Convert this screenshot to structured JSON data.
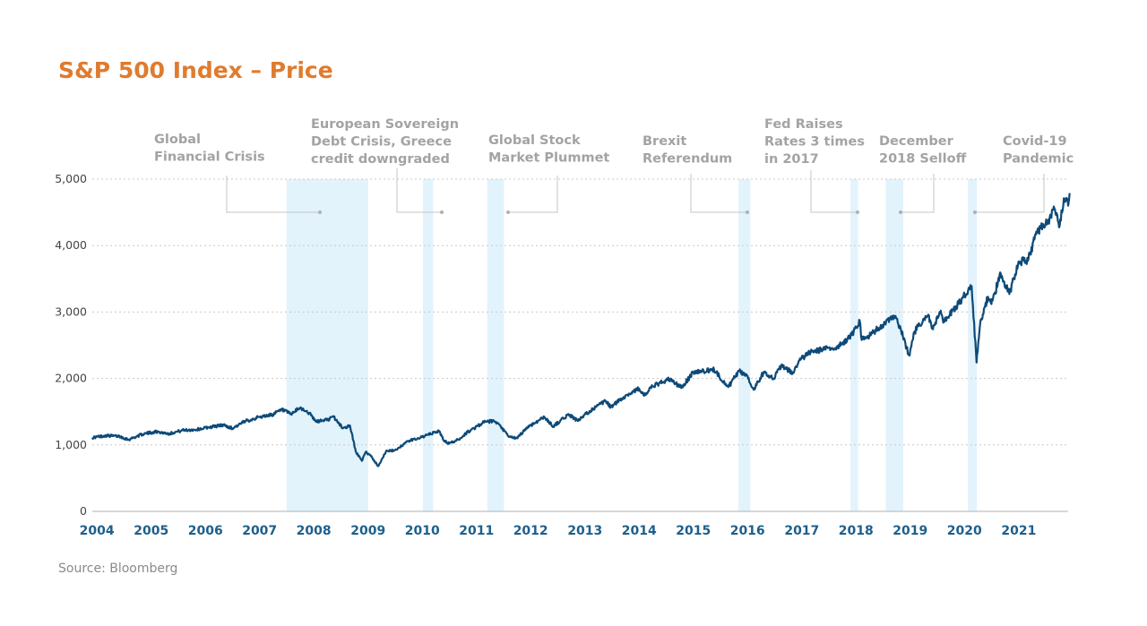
{
  "source": "Source: Bloomberg",
  "colors": {
    "title": "#e07b2e",
    "line": "#0d4a78",
    "shade": "#e2f3fc",
    "annotation": "#a3a3a3",
    "axis_labels": "#1d5f8c"
  },
  "chart_data": {
    "type": "line",
    "title": "S&P 500 Index – Price",
    "xlabel": "",
    "ylabel": "",
    "ylim": [
      0,
      5000
    ],
    "xlim": [
      "2003-12-01",
      "2021-11-30"
    ],
    "grid": true,
    "y_ticks": [
      0,
      1000,
      2000,
      3000,
      4000,
      5000
    ],
    "y_tick_labels": [
      "0",
      "1,000",
      "2,000",
      "3,000",
      "4,000",
      "5,000"
    ],
    "x_tick_labels": [
      "2004",
      "2005",
      "2006",
      "2007",
      "2008",
      "2009",
      "2010",
      "2011",
      "2012",
      "2013",
      "2014",
      "2015",
      "2016",
      "2017",
      "2018",
      "2019",
      "2020",
      "2021"
    ],
    "series": [
      {
        "points": [
          [
            "2003-12-01",
            1110
          ],
          [
            "2004-03-01",
            1140
          ],
          [
            "2004-06-01",
            1130
          ],
          [
            "2004-08-01",
            1080
          ],
          [
            "2004-11-01",
            1160
          ],
          [
            "2005-02-01",
            1200
          ],
          [
            "2005-05-01",
            1170
          ],
          [
            "2005-08-01",
            1220
          ],
          [
            "2005-11-01",
            1230
          ],
          [
            "2006-02-01",
            1270
          ],
          [
            "2006-05-01",
            1300
          ],
          [
            "2006-07-01",
            1250
          ],
          [
            "2006-10-01",
            1360
          ],
          [
            "2007-01-01",
            1420
          ],
          [
            "2007-04-01",
            1460
          ],
          [
            "2007-06-01",
            1530
          ],
          [
            "2007-08-01",
            1460
          ],
          [
            "2007-10-01",
            1560
          ],
          [
            "2007-12-01",
            1480
          ],
          [
            "2008-01-15",
            1350
          ],
          [
            "2008-04-01",
            1380
          ],
          [
            "2008-05-15",
            1420
          ],
          [
            "2008-07-15",
            1250
          ],
          [
            "2008-09-01",
            1290
          ],
          [
            "2008-10-10",
            900
          ],
          [
            "2008-11-20",
            760
          ],
          [
            "2008-12-15",
            890
          ],
          [
            "2009-01-15",
            850
          ],
          [
            "2009-03-09",
            680
          ],
          [
            "2009-05-01",
            900
          ],
          [
            "2009-07-01",
            920
          ],
          [
            "2009-10-01",
            1060
          ],
          [
            "2010-01-01",
            1120
          ],
          [
            "2010-04-23",
            1210
          ],
          [
            "2010-05-25",
            1070
          ],
          [
            "2010-07-02",
            1020
          ],
          [
            "2010-09-01",
            1080
          ],
          [
            "2010-11-01",
            1190
          ],
          [
            "2011-02-18",
            1340
          ],
          [
            "2011-04-29",
            1360
          ],
          [
            "2011-06-15",
            1270
          ],
          [
            "2011-08-08",
            1120
          ],
          [
            "2011-10-03",
            1100
          ],
          [
            "2011-12-01",
            1250
          ],
          [
            "2012-04-02",
            1420
          ],
          [
            "2012-06-01",
            1280
          ],
          [
            "2012-09-14",
            1460
          ],
          [
            "2012-11-15",
            1360
          ],
          [
            "2013-02-01",
            1510
          ],
          [
            "2013-05-21",
            1660
          ],
          [
            "2013-06-24",
            1570
          ],
          [
            "2013-09-18",
            1720
          ],
          [
            "2013-12-31",
            1850
          ],
          [
            "2014-02-03",
            1740
          ],
          [
            "2014-04-01",
            1880
          ],
          [
            "2014-07-24",
            1990
          ],
          [
            "2014-10-15",
            1860
          ],
          [
            "2014-12-29",
            2090
          ],
          [
            "2015-03-01",
            2110
          ],
          [
            "2015-05-21",
            2130
          ],
          [
            "2015-08-24",
            1870
          ],
          [
            "2015-11-03",
            2110
          ],
          [
            "2016-01-01",
            2040
          ],
          [
            "2016-02-11",
            1830
          ],
          [
            "2016-04-20",
            2100
          ],
          [
            "2016-06-27",
            2000
          ],
          [
            "2016-08-15",
            2190
          ],
          [
            "2016-11-04",
            2080
          ],
          [
            "2016-12-15",
            2270
          ],
          [
            "2017-03-01",
            2400
          ],
          [
            "2017-06-01",
            2440
          ],
          [
            "2017-09-01",
            2470
          ],
          [
            "2017-12-01",
            2650
          ],
          [
            "2018-01-26",
            2870
          ],
          [
            "2018-02-08",
            2580
          ],
          [
            "2018-04-01",
            2640
          ],
          [
            "2018-06-01",
            2760
          ],
          [
            "2018-09-20",
            2930
          ],
          [
            "2018-11-01",
            2720
          ],
          [
            "2018-12-24",
            2350
          ],
          [
            "2019-02-01",
            2710
          ],
          [
            "2019-04-30",
            2950
          ],
          [
            "2019-06-03",
            2740
          ],
          [
            "2019-07-26",
            3020
          ],
          [
            "2019-08-12",
            2840
          ],
          [
            "2019-11-01",
            3070
          ],
          [
            "2020-02-19",
            3390
          ],
          [
            "2020-03-23",
            2240
          ],
          [
            "2020-04-15",
            2800
          ],
          [
            "2020-06-08",
            3230
          ],
          [
            "2020-07-01",
            3120
          ],
          [
            "2020-09-02",
            3580
          ],
          [
            "2020-10-30",
            3270
          ],
          [
            "2020-12-31",
            3760
          ],
          [
            "2021-03-04",
            3770
          ],
          [
            "2021-05-07",
            4230
          ],
          [
            "2021-07-01",
            4320
          ],
          [
            "2021-09-02",
            4540
          ],
          [
            "2021-10-04",
            4300
          ],
          [
            "2021-11-05",
            4700
          ],
          [
            "2021-11-30",
            4600
          ],
          [
            "2021-12-10",
            4790
          ]
        ]
      }
    ],
    "shaded_periods": [
      {
        "start": "2007-07-01",
        "end": "2009-01-01"
      },
      {
        "start": "2010-01-05",
        "end": "2010-03-15"
      },
      {
        "start": "2011-03-15",
        "end": "2011-07-05"
      },
      {
        "start": "2015-11-01",
        "end": "2016-01-20"
      },
      {
        "start": "2017-11-25",
        "end": "2018-01-15"
      },
      {
        "start": "2018-07-20",
        "end": "2018-11-15"
      },
      {
        "start": "2020-01-25",
        "end": "2020-03-25"
      }
    ],
    "annotations": [
      {
        "lines": [
          "Global",
          "Financial Crisis"
        ]
      },
      {
        "lines": [
          "European Sovereign",
          "Debt Crisis, Greece",
          "credit downgraded"
        ]
      },
      {
        "lines": [
          "Global Stock",
          "Market Plummet"
        ]
      },
      {
        "lines": [
          "Brexit",
          "Referendum"
        ]
      },
      {
        "lines": [
          "Fed Raises",
          "Rates 3 times",
          "in 2017"
        ]
      },
      {
        "lines": [
          "December",
          "2018 Selloff"
        ]
      },
      {
        "lines": [
          "Covid-19",
          "Pandemic"
        ]
      }
    ]
  }
}
